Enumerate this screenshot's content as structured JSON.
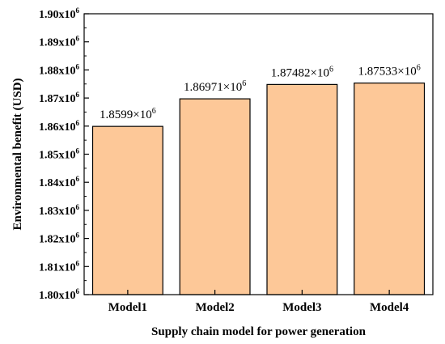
{
  "chart_data": {
    "type": "bar",
    "categories": [
      "Model1",
      "Model2",
      "Model3",
      "Model4"
    ],
    "values": [
      1859900,
      1869710,
      1874820,
      1875330
    ],
    "data_labels": [
      {
        "mantissa": "1.8599×10",
        "exp": "6"
      },
      {
        "mantissa": "1.86971×10",
        "exp": "6"
      },
      {
        "mantissa": "1.87482×10",
        "exp": "6"
      },
      {
        "mantissa": "1.87533×10",
        "exp": "6"
      }
    ],
    "xlabel": "Supply chain model for power generation",
    "ylabel": "Environmental benefit (USD)",
    "ylim": [
      1800000,
      1900000
    ],
    "y_ticks": [
      1800000,
      1810000,
      1820000,
      1830000,
      1840000,
      1850000,
      1860000,
      1870000,
      1880000,
      1890000,
      1900000
    ],
    "y_tick_labels": [
      {
        "mantissa": "1.80x10",
        "exp": "6"
      },
      {
        "mantissa": "1.81x10",
        "exp": "6"
      },
      {
        "mantissa": "1.82x10",
        "exp": "6"
      },
      {
        "mantissa": "1.83x10",
        "exp": "6"
      },
      {
        "mantissa": "1.84x10",
        "exp": "6"
      },
      {
        "mantissa": "1.85x10",
        "exp": "6"
      },
      {
        "mantissa": "1.86x10",
        "exp": "6"
      },
      {
        "mantissa": "1.87x10",
        "exp": "6"
      },
      {
        "mantissa": "1.88x10",
        "exp": "6"
      },
      {
        "mantissa": "1.89x10",
        "exp": "6"
      },
      {
        "mantissa": "1.90x10",
        "exp": "6"
      }
    ],
    "grid": false,
    "legend": "none",
    "bar_color": "#FDC898",
    "bar_edge_color": "#000000"
  }
}
